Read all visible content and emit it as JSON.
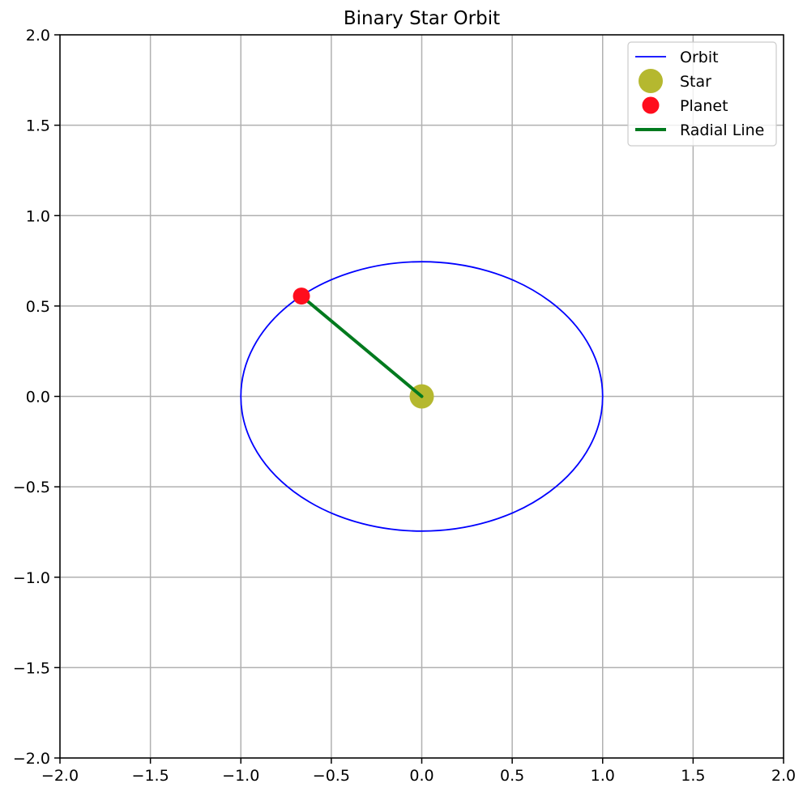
{
  "chart_data": {
    "type": "line",
    "title": "Binary Star Orbit",
    "xlabel": "",
    "ylabel": "",
    "xlim": [
      -2.0,
      2.0
    ],
    "ylim": [
      -2.0,
      2.0
    ],
    "xticks": [
      -2.0,
      -1.5,
      -1.0,
      -0.5,
      0.0,
      0.5,
      1.0,
      1.5,
      2.0
    ],
    "yticks": [
      -2.0,
      -1.5,
      -1.0,
      -0.5,
      0.0,
      0.5,
      1.0,
      1.5,
      2.0
    ],
    "xtick_labels": [
      "−2.0",
      "−1.5",
      "−1.0",
      "−0.5",
      "0.0",
      "0.5",
      "1.0",
      "1.5",
      "2.0"
    ],
    "ytick_labels": [
      "−2.0",
      "−1.5",
      "−1.0",
      "−0.5",
      "0.0",
      "0.5",
      "1.0",
      "1.5",
      "2.0"
    ],
    "grid": true,
    "legend_position": "top-right",
    "series": [
      {
        "name": "Orbit",
        "kind": "ellipse",
        "center": [
          0.0,
          0.0
        ],
        "semi_major": 1.0,
        "semi_minor": 0.745,
        "color": "#0000ff"
      },
      {
        "name": "Star",
        "kind": "point",
        "x": 0.0,
        "y": 0.0,
        "color": "#b5b82f"
      },
      {
        "name": "Planet",
        "kind": "point",
        "x": -0.665,
        "y": 0.555,
        "color": "#ff0d1d"
      },
      {
        "name": "Radial Line",
        "kind": "segment",
        "x": [
          0.0,
          -0.665
        ],
        "y": [
          0.0,
          0.555
        ],
        "color": "#007a1e"
      }
    ]
  }
}
